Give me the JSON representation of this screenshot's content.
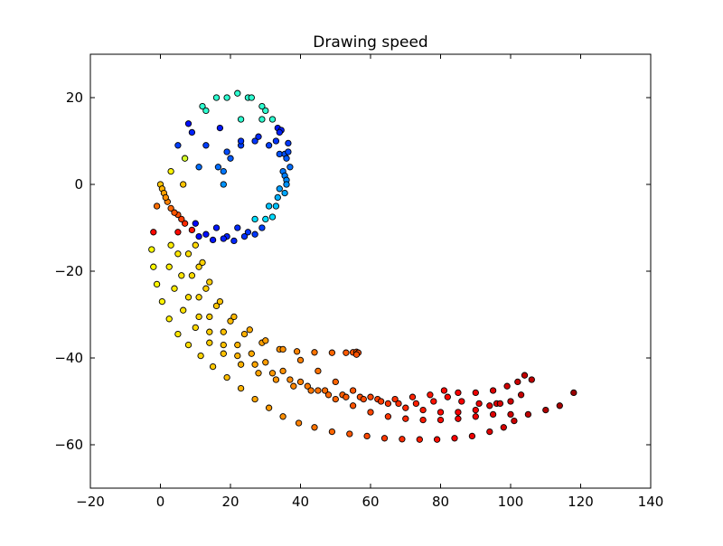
{
  "chart_data": {
    "type": "scatter",
    "title": "Drawing speed",
    "xlabel": "",
    "ylabel": "",
    "xlim": [
      -20,
      140
    ],
    "ylim": [
      -70,
      30
    ],
    "xticks": [
      -20,
      0,
      20,
      40,
      60,
      80,
      100,
      120,
      140
    ],
    "yticks": [
      -60,
      -40,
      -20,
      0,
      20
    ],
    "x_tick_labels": [
      "−20",
      "0",
      "20",
      "40",
      "60",
      "80",
      "100",
      "120",
      "140"
    ],
    "y_tick_labels": [
      "−60",
      "−40",
      "−20",
      "0",
      "20"
    ],
    "grid": false,
    "colormap": "jet",
    "marker_edge_color": "#000000",
    "series": [
      {
        "points": [
          [
            0.0,
            0.0
          ],
          [
            2.0,
            -4.0
          ],
          [
            5.0,
            -7.0
          ],
          [
            10.0,
            -9.0
          ],
          [
            16.0,
            -10.0
          ],
          [
            22.0,
            -10.0
          ],
          [
            27.0,
            -8.0
          ],
          [
            31.0,
            -5.0
          ],
          [
            34.0,
            -1.0
          ],
          [
            35.0,
            3.0
          ],
          [
            34.0,
            7.0
          ],
          [
            31.0,
            9.0
          ],
          [
            27.0,
            10.0
          ],
          [
            23.0,
            9.0
          ],
          [
            20.0,
            6.0
          ],
          [
            18.0,
            3.0
          ],
          [
            18.0,
            0.0
          ],
          [
            0.5,
            -1.0
          ],
          [
            3.0,
            -5.5
          ],
          [
            7.0,
            -9.0
          ],
          [
            13.0,
            -11.5
          ],
          [
            19.0,
            -12.0
          ],
          [
            25.0,
            -11.0
          ],
          [
            30.0,
            -8.0
          ],
          [
            33.5,
            -3.0
          ],
          [
            35.5,
            2.0
          ],
          [
            35.5,
            7.0
          ],
          [
            33.0,
            10.0
          ],
          [
            28.0,
            11.0
          ],
          [
            23.0,
            10.0
          ],
          [
            19.0,
            7.5
          ],
          [
            16.5,
            4.0
          ],
          [
            1.0,
            -2.0
          ],
          [
            4.0,
            -6.5
          ],
          [
            9.0,
            -10.5
          ],
          [
            15.0,
            -12.8
          ],
          [
            21.0,
            -13.0
          ],
          [
            27.0,
            -11.5
          ],
          [
            32.0,
            -7.5
          ],
          [
            35.5,
            -2.0
          ],
          [
            37.0,
            4.0
          ],
          [
            36.5,
            9.5
          ],
          [
            33.5,
            13.0
          ],
          [
            29.0,
            15.0
          ],
          [
            23.0,
            15.0
          ],
          [
            17.0,
            13.0
          ],
          [
            13.0,
            9.0
          ],
          [
            11.0,
            4.0
          ],
          [
            1.5,
            -3.0
          ],
          [
            6.0,
            -8.0
          ],
          [
            11.0,
            -12.0
          ],
          [
            18.0,
            -12.5
          ],
          [
            24.0,
            -12.0
          ],
          [
            29.0,
            -10.0
          ],
          [
            33.0,
            -5.0
          ],
          [
            36.0,
            1.0
          ],
          [
            36.5,
            7.5
          ],
          [
            34.5,
            12.5
          ],
          [
            30.0,
            17.0
          ],
          [
            25.0,
            20.0
          ],
          [
            19.0,
            20.0
          ],
          [
            13.0,
            17.0
          ],
          [
            9.0,
            12.0
          ],
          [
            7.0,
            6.0
          ],
          [
            6.5,
            0.0
          ]
        ]
      },
      {
        "points": [
          [
            22.0,
            21.0
          ],
          [
            26.0,
            20.0
          ],
          [
            29.0,
            18.0
          ],
          [
            32.0,
            15.0
          ],
          [
            34.0,
            12.0
          ],
          [
            36.0,
            6.0
          ],
          [
            36.0,
            0.0
          ],
          [
            16.0,
            20.0
          ],
          [
            12.0,
            18.0
          ],
          [
            8.0,
            14.0
          ],
          [
            5.0,
            9.0
          ],
          [
            3.0,
            3.0
          ],
          [
            -1.0,
            -5.0
          ],
          [
            -2.0,
            -11.0
          ],
          [
            -2.5,
            -15.0
          ],
          [
            -2.0,
            -19.0
          ],
          [
            -1.0,
            -23.0
          ],
          [
            0.5,
            -27.0
          ],
          [
            2.5,
            -31.0
          ],
          [
            5.0,
            -34.5
          ],
          [
            8.0,
            -37.0
          ],
          [
            11.5,
            -39.5
          ],
          [
            15.0,
            -42.0
          ],
          [
            19.0,
            -44.5
          ],
          [
            23.0,
            -47.0
          ],
          [
            27.0,
            -49.5
          ],
          [
            31.0,
            -51.5
          ],
          [
            35.0,
            -53.5
          ],
          [
            39.5,
            -55.0
          ],
          [
            44.0,
            -56.0
          ],
          [
            49.0,
            -57.0
          ],
          [
            54.0,
            -57.5
          ],
          [
            59.0,
            -58.0
          ],
          [
            64.0,
            -58.5
          ],
          [
            69.0,
            -58.7
          ],
          [
            74.0,
            -58.8
          ],
          [
            79.0,
            -58.8
          ],
          [
            84.0,
            -58.5
          ],
          [
            89.0,
            -58.0
          ],
          [
            94.0,
            -57.0
          ],
          [
            98.0,
            -56.0
          ],
          [
            101.0,
            -54.5
          ]
        ]
      },
      {
        "points": [
          [
            5.0,
            -11.0
          ],
          [
            5.0,
            -16.0
          ],
          [
            6.0,
            -21.0
          ],
          [
            8.0,
            -26.0
          ],
          [
            11.0,
            -30.5
          ],
          [
            14.0,
            -34.0
          ],
          [
            18.0,
            -37.0
          ],
          [
            22.0,
            -39.5
          ],
          [
            27.0,
            -41.5
          ],
          [
            32.0,
            -43.5
          ],
          [
            37.0,
            -45.0
          ],
          [
            42.0,
            -46.5
          ],
          [
            47.0,
            -47.5
          ],
          [
            52.0,
            -48.5
          ],
          [
            57.0,
            -49.0
          ],
          [
            62.0,
            -49.5
          ],
          [
            67.0,
            -49.5
          ],
          [
            72.0,
            -49.0
          ],
          [
            77.0,
            -48.5
          ],
          [
            81.0,
            -47.5
          ],
          [
            85.0,
            -48.0
          ],
          [
            90.0,
            -48.0
          ],
          [
            95.0,
            -47.5
          ],
          [
            99.0,
            -46.5
          ],
          [
            102.0,
            -45.5
          ],
          [
            104.0,
            -44.0
          ],
          [
            106.0,
            -45.0
          ],
          [
            10.0,
            -14.0
          ],
          [
            11.0,
            -19.0
          ],
          [
            13.0,
            -24.0
          ],
          [
            16.0,
            -28.0
          ],
          [
            20.0,
            -31.5
          ],
          [
            24.0,
            -34.5
          ],
          [
            29.0,
            -36.5
          ],
          [
            34.0,
            -38.0
          ],
          [
            39.0,
            -38.5
          ],
          [
            44.0,
            -38.7
          ],
          [
            49.0,
            -38.8
          ],
          [
            53.0,
            -38.8
          ],
          [
            55.0,
            -38.7
          ],
          [
            56.0,
            -38.6
          ],
          [
            56.5,
            -38.8
          ],
          [
            56.0,
            -39.2
          ],
          [
            3.0,
            -14.0
          ],
          [
            2.5,
            -19.0
          ],
          [
            4.0,
            -24.0
          ],
          [
            6.5,
            -29.0
          ],
          [
            10.0,
            -33.0
          ],
          [
            14.0,
            -36.5
          ],
          [
            18.0,
            -39.0
          ],
          [
            23.0,
            -41.5
          ],
          [
            28.0,
            -43.5
          ],
          [
            33.0,
            -45.0
          ],
          [
            38.0,
            -46.5
          ],
          [
            43.0,
            -47.5
          ],
          [
            48.0,
            -48.5
          ],
          [
            53.0,
            -49.0
          ],
          [
            58.0,
            -49.5
          ],
          [
            63.0,
            -50.0
          ],
          [
            68.0,
            -50.5
          ],
          [
            73.0,
            -50.5
          ],
          [
            78.0,
            -50.0
          ],
          [
            82.0,
            -49.0
          ],
          [
            86.0,
            -50.0
          ],
          [
            91.0,
            -50.5
          ],
          [
            96.0,
            -50.5
          ],
          [
            100.0,
            -50.0
          ],
          [
            103.0,
            -48.5
          ],
          [
            12.0,
            -18.0
          ],
          [
            14.0,
            -22.5
          ],
          [
            17.0,
            -27.0
          ],
          [
            21.0,
            -30.5
          ],
          [
            25.5,
            -33.5
          ],
          [
            30.0,
            -36.0
          ],
          [
            35.0,
            -38.0
          ],
          [
            40.0,
            -40.5
          ],
          [
            45.0,
            -43.0
          ],
          [
            50.0,
            -45.5
          ],
          [
            55.0,
            -47.5
          ],
          [
            60.0,
            -49.0
          ],
          [
            65.0,
            -50.5
          ],
          [
            70.0,
            -51.5
          ],
          [
            75.0,
            -52.0
          ],
          [
            80.0,
            -52.5
          ],
          [
            85.0,
            -52.5
          ],
          [
            90.0,
            -52.0
          ],
          [
            94.0,
            -51.0
          ],
          [
            97.0,
            -50.5
          ],
          [
            8.0,
            -16.0
          ],
          [
            9.0,
            -21.0
          ],
          [
            11.0,
            -26.0
          ],
          [
            14.0,
            -30.5
          ],
          [
            18.0,
            -34.0
          ],
          [
            22.0,
            -37.0
          ],
          [
            26.0,
            -39.0
          ],
          [
            30.0,
            -41.0
          ],
          [
            35.0,
            -43.0
          ],
          [
            40.0,
            -45.5
          ],
          [
            45.0,
            -47.5
          ],
          [
            50.0,
            -49.5
          ],
          [
            55.0,
            -51.0
          ],
          [
            60.0,
            -52.5
          ],
          [
            65.0,
            -53.5
          ],
          [
            70.0,
            -54.0
          ],
          [
            75.0,
            -54.3
          ],
          [
            80.0,
            -54.3
          ],
          [
            85.0,
            -54.0
          ],
          [
            90.0,
            -53.5
          ],
          [
            95.0,
            -53.0
          ],
          [
            100.0,
            -53.0
          ],
          [
            105.0,
            -53.0
          ],
          [
            110.0,
            -52.0
          ],
          [
            114.0,
            -51.0
          ],
          [
            118.0,
            -48.0
          ]
        ]
      }
    ]
  }
}
